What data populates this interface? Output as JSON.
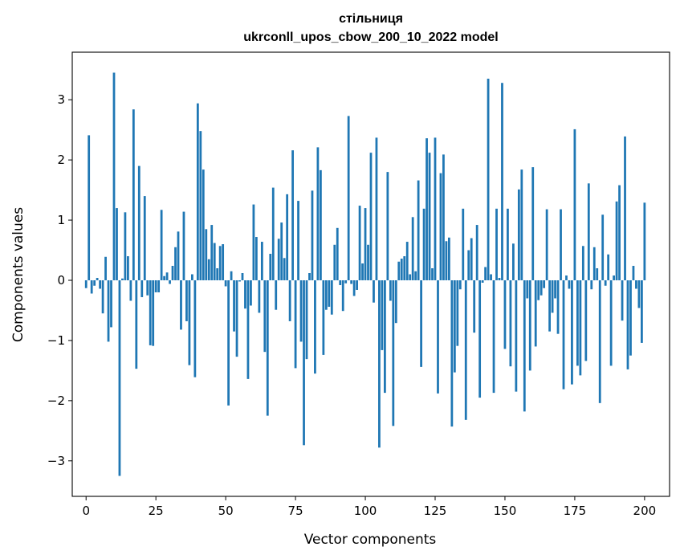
{
  "chart_data": {
    "type": "bar",
    "title": "стільниця",
    "subtitle": "ukrconll_upos_cbow_200_10_2022 model",
    "xlabel": "Vector components",
    "ylabel": "Components values",
    "xlim": [
      -4.95,
      208.95
    ],
    "ylim": [
      -3.59,
      3.79
    ],
    "xticks": [
      0,
      25,
      50,
      75,
      100,
      125,
      150,
      175,
      200
    ],
    "yticks": [
      -3,
      -2,
      -1,
      0,
      1,
      2,
      3
    ],
    "grid": false,
    "color": "#1f77b4",
    "x_start": 0,
    "values": [
      -0.13,
      2.41,
      -0.22,
      -0.09,
      0.04,
      -0.14,
      -0.55,
      0.39,
      -1.02,
      -0.78,
      3.45,
      1.2,
      -3.25,
      0.03,
      1.13,
      0.4,
      -0.34,
      2.84,
      -1.47,
      1.9,
      -0.28,
      1.4,
      -0.25,
      -1.08,
      -1.09,
      -0.2,
      -0.2,
      1.17,
      0.07,
      0.13,
      -0.06,
      0.24,
      0.55,
      0.81,
      -0.82,
      1.14,
      -0.68,
      -1.41,
      0.1,
      -1.61,
      2.94,
      2.48,
      1.84,
      0.85,
      0.35,
      0.92,
      0.62,
      0.2,
      0.57,
      0.6,
      -0.1,
      -2.08,
      0.15,
      -0.85,
      -1.27,
      -0.02,
      0.12,
      -0.47,
      -1.64,
      -0.42,
      1.26,
      0.72,
      -0.54,
      0.64,
      -1.19,
      -2.25,
      0.44,
      1.54,
      -0.49,
      0.69,
      0.96,
      0.37,
      1.43,
      -0.68,
      2.16,
      -1.46,
      1.32,
      -1.02,
      -2.74,
      -1.31,
      0.12,
      1.49,
      -1.55,
      2.21,
      1.83,
      -1.24,
      -0.49,
      -0.44,
      -0.57,
      0.59,
      0.87,
      -0.08,
      -0.51,
      -0.05,
      2.73,
      -0.06,
      -0.26,
      -0.16,
      1.24,
      0.28,
      1.2,
      0.59,
      2.12,
      -0.37,
      2.37,
      -2.78,
      -1.16,
      -1.87,
      1.8,
      -0.34,
      -2.42,
      -0.71,
      0.31,
      0.36,
      0.4,
      0.64,
      0.1,
      1.05,
      0.15,
      1.66,
      -1.44,
      1.19,
      2.36,
      2.12,
      0.2,
      2.37,
      -1.88,
      1.78,
      2.09,
      0.65,
      0.71,
      -2.43,
      -1.53,
      -1.09,
      -0.15,
      1.19,
      -2.32,
      0.5,
      0.7,
      -0.87,
      0.92,
      -1.95,
      -0.04,
      0.22,
      3.35,
      0.1,
      -1.87,
      1.19,
      0.04,
      3.28,
      -1.14,
      1.19,
      -1.43,
      0.61,
      -1.85,
      1.51,
      1.84,
      -2.18,
      -0.3,
      -1.5,
      1.88,
      -1.1,
      -0.33,
      -0.25,
      -0.13,
      1.18,
      -0.85,
      -0.54,
      -0.3,
      -0.89,
      1.18,
      -1.81,
      0.08,
      -0.14,
      -1.73,
      2.51,
      -1.42,
      -1.58,
      0.57,
      -1.34,
      1.61,
      -0.15,
      0.55,
      0.2,
      -2.04,
      1.09,
      -0.09,
      0.43,
      -1.42,
      0.08,
      1.31,
      1.58,
      -0.67,
      2.39,
      -1.48,
      -1.25,
      0.24,
      -0.14,
      -0.46,
      -1.04,
      1.29
    ]
  }
}
